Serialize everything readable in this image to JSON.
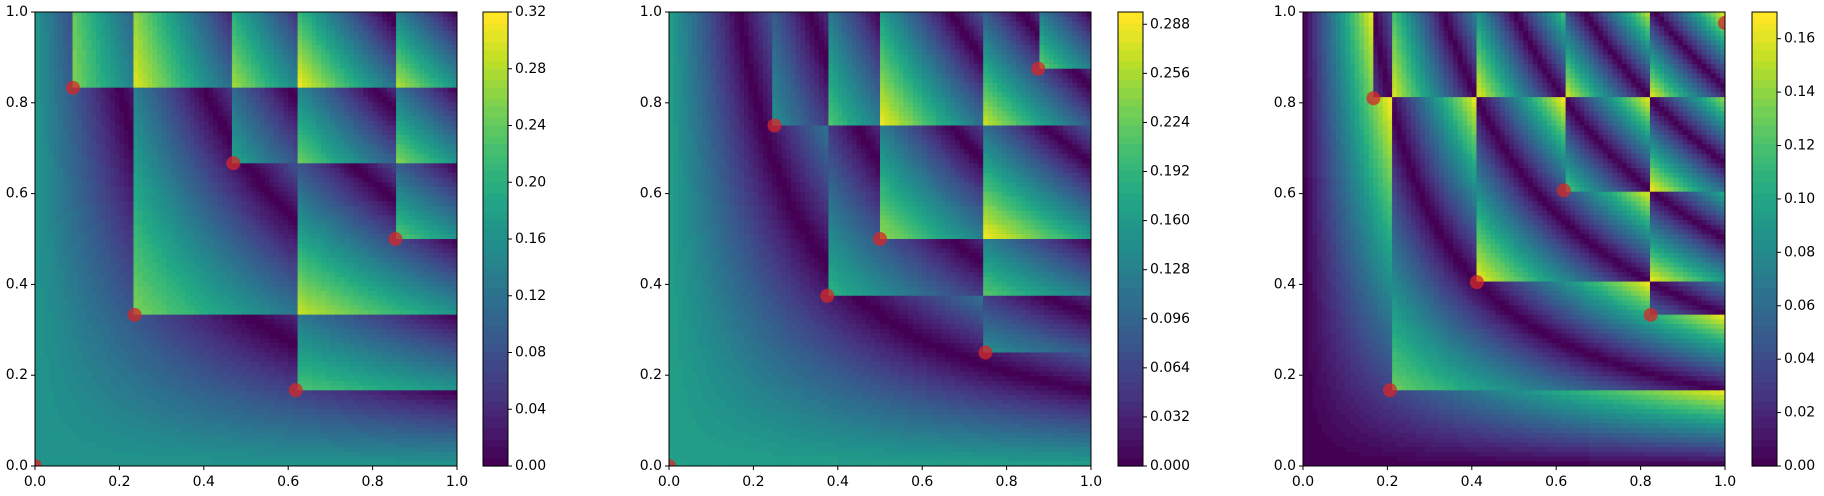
{
  "chart_data": [
    {
      "type": "contour",
      "colormap": "viridis",
      "color": "#d62728",
      "x": [
        0,
        0.09,
        0.236,
        0.47,
        0.618,
        0.854
      ],
      "y": [
        0,
        0.833,
        0.333,
        0.667,
        0.167,
        0.5
      ],
      "xlim": [
        0,
        1
      ],
      "ylim": [
        0,
        1
      ],
      "xticks": [
        {
          "value": 0,
          "label": "0.0"
        },
        {
          "value": 0.2,
          "label": "0.2"
        },
        {
          "value": 0.4,
          "label": "0.4"
        },
        {
          "value": 0.6,
          "label": "0.6"
        },
        {
          "value": 0.8,
          "label": "0.8"
        },
        {
          "value": 1,
          "label": "1.0"
        }
      ],
      "yticks": [
        {
          "value": 0,
          "label": "0.0"
        },
        {
          "value": 0.2,
          "label": "0.2"
        },
        {
          "value": 0.4,
          "label": "0.4"
        },
        {
          "value": 0.6,
          "label": "0.6"
        },
        {
          "value": 0.8,
          "label": "0.8"
        },
        {
          "value": 1,
          "label": "1.0"
        }
      ],
      "clim": [
        0,
        0.32
      ],
      "cticks": [
        {
          "value": 0,
          "label": "0.00"
        },
        {
          "value": 0.04,
          "label": "0.04"
        },
        {
          "value": 0.08,
          "label": "0.08"
        },
        {
          "value": 0.12,
          "label": "0.12"
        },
        {
          "value": 0.16,
          "label": "0.16"
        },
        {
          "value": 0.2,
          "label": "0.20"
        },
        {
          "value": 0.24,
          "label": "0.24"
        },
        {
          "value": 0.28,
          "label": "0.28"
        },
        {
          "value": 0.32,
          "label": "0.32"
        }
      ]
    },
    {
      "type": "contour",
      "colormap": "viridis",
      "color": "#d62728",
      "x": [
        0,
        0.25,
        0.375,
        0.5,
        0.75,
        0.875
      ],
      "y": [
        0,
        0.75,
        0.375,
        0.5,
        0.25,
        0.875
      ],
      "xlim": [
        0,
        1
      ],
      "ylim": [
        0,
        1
      ],
      "xticks": [
        {
          "value": 0,
          "label": "0.0"
        },
        {
          "value": 0.2,
          "label": "0.2"
        },
        {
          "value": 0.4,
          "label": "0.4"
        },
        {
          "value": 0.6,
          "label": "0.6"
        },
        {
          "value": 0.8,
          "label": "0.8"
        },
        {
          "value": 1,
          "label": "1.0"
        }
      ],
      "yticks": [
        {
          "value": 0,
          "label": "0.0"
        },
        {
          "value": 0.2,
          "label": "0.2"
        },
        {
          "value": 0.4,
          "label": "0.4"
        },
        {
          "value": 0.6,
          "label": "0.6"
        },
        {
          "value": 0.8,
          "label": "0.8"
        },
        {
          "value": 1,
          "label": "1.0"
        }
      ],
      "clim": [
        0,
        0.296
      ],
      "cticks": [
        {
          "value": 0,
          "label": "0.000"
        },
        {
          "value": 0.032,
          "label": "0.032"
        },
        {
          "value": 0.064,
          "label": "0.064"
        },
        {
          "value": 0.096,
          "label": "0.096"
        },
        {
          "value": 0.128,
          "label": "0.128"
        },
        {
          "value": 0.16,
          "label": "0.160"
        },
        {
          "value": 0.192,
          "label": "0.192"
        },
        {
          "value": 0.224,
          "label": "0.224"
        },
        {
          "value": 0.256,
          "label": "0.256"
        },
        {
          "value": 0.288,
          "label": "0.288"
        }
      ]
    },
    {
      "type": "contour",
      "colormap": "viridis",
      "color": "#d62728",
      "x": [
        0.167,
        0.206,
        0.412,
        0.618,
        0.824,
        1.0
      ],
      "y": [
        0.81,
        0.167,
        0.405,
        0.607,
        0.333,
        0.976
      ],
      "xlim": [
        0,
        1
      ],
      "ylim": [
        0,
        1
      ],
      "xticks": [
        {
          "value": 0,
          "label": "0.0"
        },
        {
          "value": 0.2,
          "label": "0.2"
        },
        {
          "value": 0.4,
          "label": "0.4"
        },
        {
          "value": 0.6,
          "label": "0.6"
        },
        {
          "value": 0.8,
          "label": "0.8"
        },
        {
          "value": 1,
          "label": "1.0"
        }
      ],
      "yticks": [
        {
          "value": 0,
          "label": "0.0"
        },
        {
          "value": 0.2,
          "label": "0.2"
        },
        {
          "value": 0.4,
          "label": "0.4"
        },
        {
          "value": 0.6,
          "label": "0.6"
        },
        {
          "value": 0.8,
          "label": "0.8"
        },
        {
          "value": 1,
          "label": "1.0"
        }
      ],
      "clim": [
        0,
        0.17
      ],
      "cticks": [
        {
          "value": 0,
          "label": "0.00"
        },
        {
          "value": 0.02,
          "label": "0.02"
        },
        {
          "value": 0.04,
          "label": "0.04"
        },
        {
          "value": 0.06,
          "label": "0.06"
        },
        {
          "value": 0.08,
          "label": "0.08"
        },
        {
          "value": 0.1,
          "label": "0.10"
        },
        {
          "value": 0.12,
          "label": "0.12"
        },
        {
          "value": 0.14,
          "label": "0.14"
        },
        {
          "value": 0.16,
          "label": "0.16"
        }
      ]
    }
  ]
}
